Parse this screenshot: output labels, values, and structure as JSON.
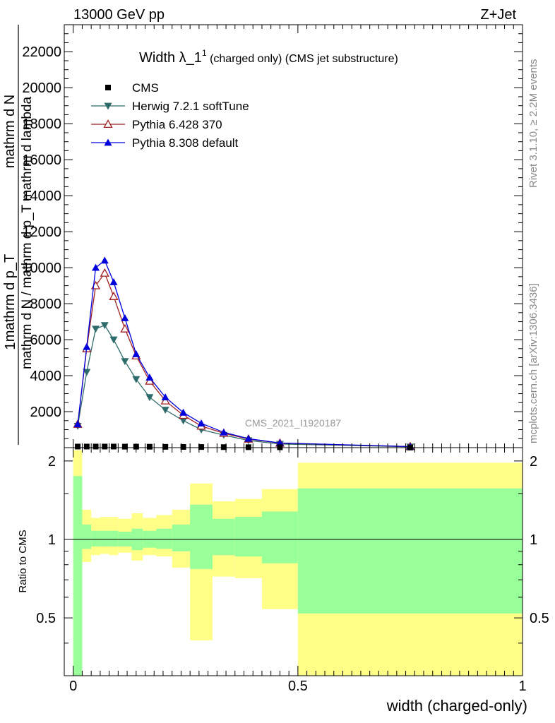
{
  "header": {
    "energy_label": "13000 GeV pp",
    "process_label": "Z+Jet"
  },
  "side_labels": {
    "rivet": "Rivet 3.1.10, ≥ 2.2M events",
    "mcplots": "mcplots.cern.ch [arXiv:1306.3436]"
  },
  "chart_data": [
    {
      "type": "line",
      "panel": "main",
      "title_main": "Width λ_1",
      "title_sup": "1",
      "title_rest": " (charged only) (CMS jet substructure)",
      "ylabel_parts": [
        "1",
        "mathrm d N",
        "mathrm d p_T",
        "mathrm d N / mathrm d p_T mathrm d lambda"
      ],
      "watermark": "CMS_2021_I1920187",
      "xlim": [
        -0.02,
        1.0
      ],
      "ylim": [
        0,
        23500
      ],
      "ytick_values": [
        2000,
        4000,
        6000,
        8000,
        10000,
        12000,
        14000,
        16000,
        18000,
        20000,
        22000
      ],
      "ytick_labels": [
        "2000",
        "4000",
        "6000",
        "8000",
        "10000",
        "12000",
        "14000",
        "16000",
        "18000",
        "20000",
        "22000"
      ],
      "x": [
        0.01,
        0.03,
        0.05,
        0.07,
        0.09,
        0.115,
        0.14,
        0.17,
        0.205,
        0.245,
        0.285,
        0.335,
        0.39,
        0.46,
        0.75
      ],
      "series": [
        {
          "name": "CMS",
          "color": "#000000",
          "marker": "square",
          "values": [
            60,
            60,
            60,
            60,
            60,
            55,
            55,
            50,
            45,
            40,
            35,
            30,
            25,
            20,
            5
          ]
        },
        {
          "name": "Herwig 7.2.1 softTune",
          "color": "#2e6b6b",
          "marker": "triangle-down",
          "values": [
            1200,
            4200,
            6600,
            6800,
            6000,
            4800,
            3800,
            2800,
            2100,
            1500,
            1000,
            700,
            400,
            200,
            50
          ]
        },
        {
          "name": "Pythia 6.428 370",
          "color": "#a02020",
          "marker": "triangle-up-open",
          "values": [
            1300,
            5500,
            9000,
            9700,
            8400,
            6600,
            5100,
            3700,
            2600,
            1800,
            1200,
            800,
            480,
            250,
            60
          ]
        },
        {
          "name": "Pythia 8.308 default",
          "color": "#0000dd",
          "marker": "triangle-up",
          "values": [
            1300,
            5600,
            10000,
            10400,
            9200,
            7200,
            5200,
            3900,
            2800,
            1950,
            1350,
            850,
            500,
            260,
            60
          ]
        }
      ]
    },
    {
      "type": "area",
      "panel": "ratio",
      "ylabel": "Ratio to CMS",
      "xlabel": "width (charged-only)",
      "xlim": [
        -0.02,
        1.0
      ],
      "ylim": [
        0.3,
        2.25
      ],
      "ytick_values": [
        0.5,
        1,
        2
      ],
      "ytick_labels": [
        "0.5",
        "1",
        "2"
      ],
      "xtick_values": [
        0,
        0.5,
        1
      ],
      "xtick_labels": [
        "0",
        "0.5",
        "1"
      ],
      "reference": 1.0,
      "band_colors": {
        "inner": "#99ff99",
        "outer": "#ffff88"
      },
      "bins": [
        {
          "lo": 0.0,
          "hi": 0.02,
          "in_lo": 0.3,
          "in_hi": 1.75,
          "out_lo": 0.3,
          "out_hi": 2.2
        },
        {
          "lo": 0.02,
          "hi": 0.04,
          "in_lo": 0.92,
          "in_hi": 1.14,
          "out_lo": 0.82,
          "out_hi": 1.3
        },
        {
          "lo": 0.04,
          "hi": 0.06,
          "in_lo": 0.94,
          "in_hi": 1.08,
          "out_lo": 0.87,
          "out_hi": 1.21
        },
        {
          "lo": 0.06,
          "hi": 0.08,
          "in_lo": 0.94,
          "in_hi": 1.08,
          "out_lo": 0.88,
          "out_hi": 1.22
        },
        {
          "lo": 0.08,
          "hi": 0.1,
          "in_lo": 0.94,
          "in_hi": 1.08,
          "out_lo": 0.87,
          "out_hi": 1.22
        },
        {
          "lo": 0.1,
          "hi": 0.13,
          "in_lo": 0.94,
          "in_hi": 1.07,
          "out_lo": 0.89,
          "out_hi": 1.2
        },
        {
          "lo": 0.13,
          "hi": 0.155,
          "in_lo": 0.91,
          "in_hi": 1.1,
          "out_lo": 0.83,
          "out_hi": 1.26
        },
        {
          "lo": 0.155,
          "hi": 0.185,
          "in_lo": 0.93,
          "in_hi": 1.08,
          "out_lo": 0.87,
          "out_hi": 1.21
        },
        {
          "lo": 0.185,
          "hi": 0.22,
          "in_lo": 0.92,
          "in_hi": 1.1,
          "out_lo": 0.86,
          "out_hi": 1.24
        },
        {
          "lo": 0.22,
          "hi": 0.26,
          "in_lo": 0.9,
          "in_hi": 1.14,
          "out_lo": 0.78,
          "out_hi": 1.3
        },
        {
          "lo": 0.26,
          "hi": 0.31,
          "in_lo": 0.77,
          "in_hi": 1.36,
          "out_lo": 0.41,
          "out_hi": 1.64
        },
        {
          "lo": 0.31,
          "hi": 0.36,
          "in_lo": 0.87,
          "in_hi": 1.2,
          "out_lo": 0.72,
          "out_hi": 1.4
        },
        {
          "lo": 0.36,
          "hi": 0.42,
          "in_lo": 0.86,
          "in_hi": 1.22,
          "out_lo": 0.71,
          "out_hi": 1.43
        },
        {
          "lo": 0.42,
          "hi": 0.5,
          "in_lo": 0.81,
          "in_hi": 1.28,
          "out_lo": 0.54,
          "out_hi": 1.56
        },
        {
          "lo": 0.5,
          "hi": 1.0,
          "in_lo": 0.52,
          "in_hi": 1.57,
          "out_lo": 0.3,
          "out_hi": 1.97
        }
      ]
    }
  ]
}
